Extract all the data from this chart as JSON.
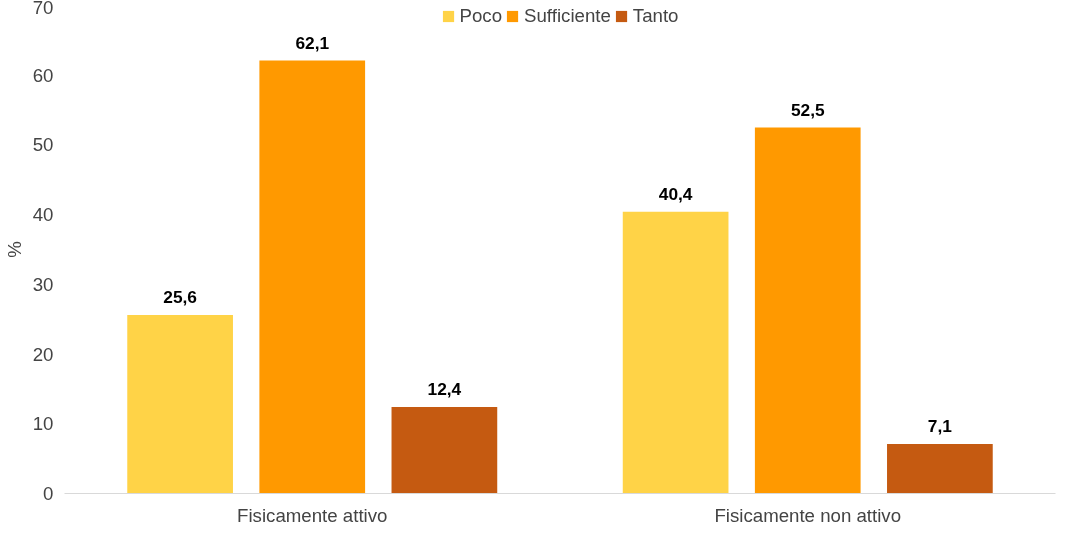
{
  "chart_data": {
    "type": "bar",
    "ylabel": "%",
    "categories": [
      "Fisicamente attivo",
      "Fisicamente non attivo"
    ],
    "series": [
      {
        "name": "Poco",
        "color": "#ffd347",
        "values": [
          25.6,
          40.4
        ],
        "value_labels": [
          "25,6",
          "40,4"
        ]
      },
      {
        "name": "Sufficiente",
        "color": "#ff9900",
        "values": [
          62.1,
          52.5
        ],
        "value_labels": [
          "62,1",
          "52,5"
        ]
      },
      {
        "name": "Tanto",
        "color": "#c55a11",
        "values": [
          12.4,
          7.1
        ],
        "value_labels": [
          "12,4",
          "7,1"
        ]
      }
    ],
    "ylim": [
      0,
      70
    ],
    "yticks": [
      0,
      10,
      20,
      30,
      40,
      50,
      60,
      70
    ],
    "grid": false,
    "legend": "top"
  }
}
